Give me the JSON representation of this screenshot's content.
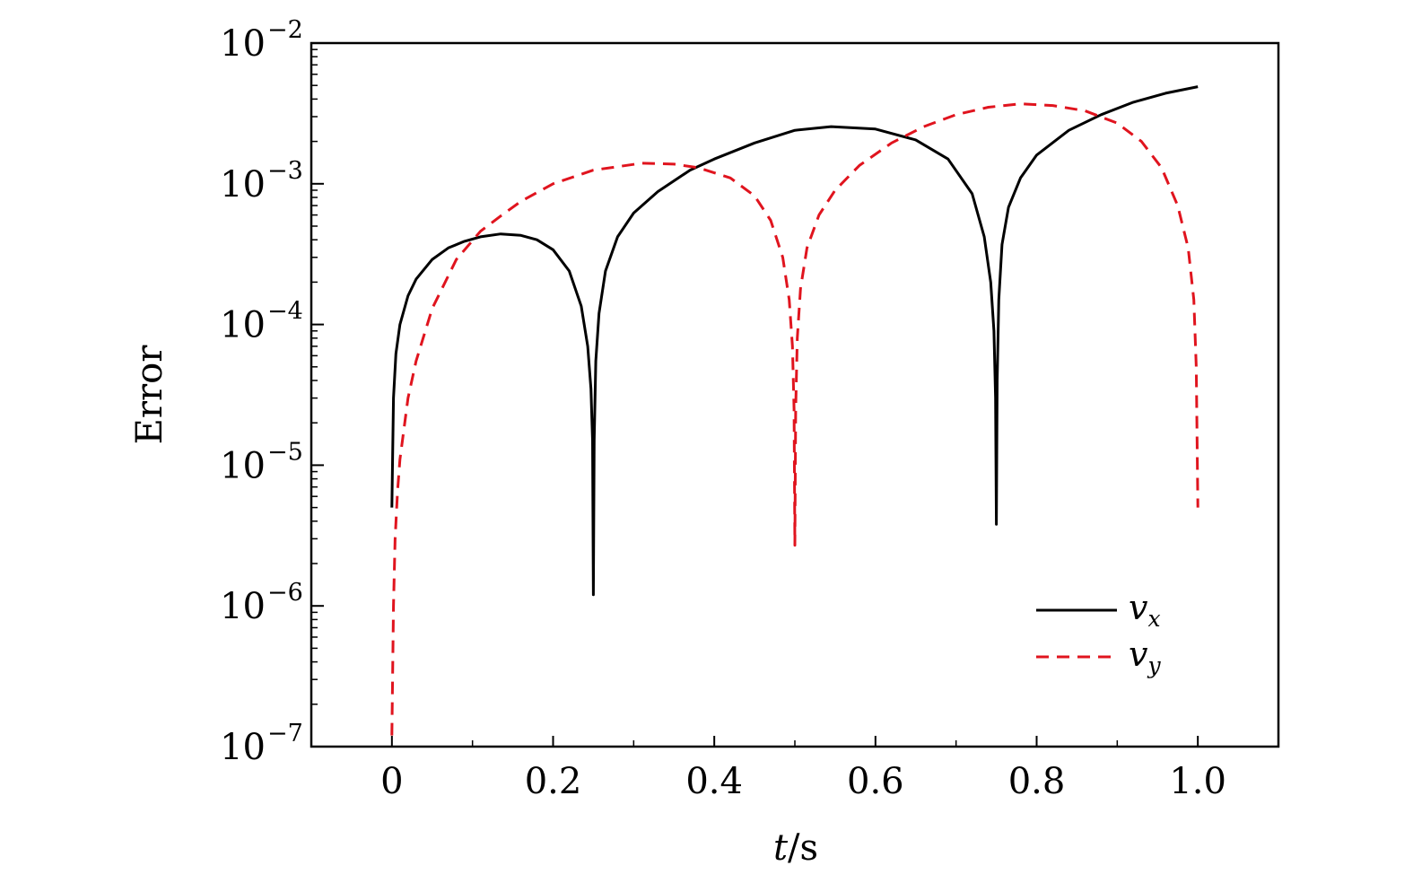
{
  "chart_data": {
    "type": "line",
    "xlabel": {
      "var": "t",
      "sep": "/",
      "unit": "s"
    },
    "ylabel": "Error",
    "xlim": [
      -0.1,
      1.1
    ],
    "ylim": [
      1e-07,
      0.01
    ],
    "yscale": "log",
    "x_ticks": [
      {
        "value": 0,
        "label": "0"
      },
      {
        "value": 0.2,
        "label": "0.2"
      },
      {
        "value": 0.4,
        "label": "0.4"
      },
      {
        "value": 0.6,
        "label": "0.6"
      },
      {
        "value": 0.8,
        "label": "0.8"
      },
      {
        "value": 1.0,
        "label": "1.0"
      }
    ],
    "y_ticks": [
      {
        "value": 1e-07,
        "base": "10",
        "exp": "−7"
      },
      {
        "value": 1e-06,
        "base": "10",
        "exp": "−6"
      },
      {
        "value": 1e-05,
        "base": "10",
        "exp": "−5"
      },
      {
        "value": 0.0001,
        "base": "10",
        "exp": "−4"
      },
      {
        "value": 0.001,
        "base": "10",
        "exp": "−3"
      },
      {
        "value": 0.01,
        "base": "10",
        "exp": "−2"
      }
    ],
    "grid": false,
    "legend_position": "bottom-right",
    "series": [
      {
        "name": "v_x",
        "label_main": "v",
        "label_sub": "x",
        "color": "#000000",
        "dash": "solid",
        "points": [
          [
            0.0,
            5e-06
          ],
          [
            0.002,
            3e-05
          ],
          [
            0.005,
            6.2e-05
          ],
          [
            0.01,
            0.0001
          ],
          [
            0.02,
            0.00016
          ],
          [
            0.03,
            0.00021
          ],
          [
            0.05,
            0.00029
          ],
          [
            0.07,
            0.00035
          ],
          [
            0.09,
            0.00039
          ],
          [
            0.11,
            0.00042
          ],
          [
            0.135,
            0.00044
          ],
          [
            0.16,
            0.00043
          ],
          [
            0.18,
            0.0004
          ],
          [
            0.2,
            0.00034
          ],
          [
            0.22,
            0.00024
          ],
          [
            0.235,
            0.000135
          ],
          [
            0.243,
            7e-05
          ],
          [
            0.247,
            3.5e-05
          ],
          [
            0.249,
            1.5e-05
          ],
          [
            0.25,
            1.2e-06
          ],
          [
            0.251,
            1.5e-05
          ],
          [
            0.253,
            5.5e-05
          ],
          [
            0.257,
            0.00012
          ],
          [
            0.265,
            0.00024
          ],
          [
            0.28,
            0.00042
          ],
          [
            0.3,
            0.00062
          ],
          [
            0.33,
            0.00088
          ],
          [
            0.37,
            0.00125
          ],
          [
            0.4,
            0.0015
          ],
          [
            0.45,
            0.00195
          ],
          [
            0.5,
            0.0024
          ],
          [
            0.545,
            0.00255
          ],
          [
            0.6,
            0.00245
          ],
          [
            0.65,
            0.00205
          ],
          [
            0.69,
            0.0015
          ],
          [
            0.72,
            0.00085
          ],
          [
            0.735,
            0.00042
          ],
          [
            0.743,
            0.0002
          ],
          [
            0.747,
            9e-05
          ],
          [
            0.749,
            3e-05
          ],
          [
            0.75,
            3.8e-06
          ],
          [
            0.751,
            4e-05
          ],
          [
            0.753,
            0.00015
          ],
          [
            0.757,
            0.00037
          ],
          [
            0.765,
            0.00068
          ],
          [
            0.78,
            0.0011
          ],
          [
            0.8,
            0.0016
          ],
          [
            0.84,
            0.0024
          ],
          [
            0.88,
            0.0031
          ],
          [
            0.92,
            0.0038
          ],
          [
            0.96,
            0.0044
          ],
          [
            1.0,
            0.0049
          ]
        ]
      },
      {
        "name": "v_y",
        "label_main": "v",
        "label_sub": "y",
        "color": "#e0141e",
        "dash": "dashed",
        "points": [
          [
            0.0,
            1.2e-07
          ],
          [
            0.002,
            1e-06
          ],
          [
            0.004,
            3e-06
          ],
          [
            0.007,
            6.5e-06
          ],
          [
            0.01,
            1.1e-05
          ],
          [
            0.02,
            3e-05
          ],
          [
            0.03,
            5.5e-05
          ],
          [
            0.05,
            0.00013
          ],
          [
            0.08,
            0.00029
          ],
          [
            0.11,
            0.00046
          ],
          [
            0.135,
            0.00059
          ],
          [
            0.16,
            0.00075
          ],
          [
            0.2,
            0.001
          ],
          [
            0.25,
            0.00125
          ],
          [
            0.31,
            0.0014
          ],
          [
            0.35,
            0.00138
          ],
          [
            0.38,
            0.0013
          ],
          [
            0.42,
            0.0011
          ],
          [
            0.45,
            0.00082
          ],
          [
            0.47,
            0.00055
          ],
          [
            0.485,
            0.0003
          ],
          [
            0.493,
            0.00015
          ],
          [
            0.497,
            7e-05
          ],
          [
            0.499,
            2.5e-05
          ],
          [
            0.5,
            2.7e-06
          ],
          [
            0.501,
            2.5e-05
          ],
          [
            0.503,
            8e-05
          ],
          [
            0.507,
            0.00018
          ],
          [
            0.515,
            0.00035
          ],
          [
            0.53,
            0.0006
          ],
          [
            0.55,
            0.0009
          ],
          [
            0.58,
            0.00135
          ],
          [
            0.62,
            0.00195
          ],
          [
            0.66,
            0.00255
          ],
          [
            0.7,
            0.0031
          ],
          [
            0.74,
            0.0035
          ],
          [
            0.78,
            0.0037
          ],
          [
            0.82,
            0.0036
          ],
          [
            0.86,
            0.0033
          ],
          [
            0.9,
            0.0027
          ],
          [
            0.93,
            0.002
          ],
          [
            0.955,
            0.0013
          ],
          [
            0.975,
            0.0007
          ],
          [
            0.988,
            0.00035
          ],
          [
            0.995,
            0.00015
          ],
          [
            0.998,
            5e-05
          ],
          [
            1.0,
            5e-06
          ]
        ]
      }
    ]
  }
}
